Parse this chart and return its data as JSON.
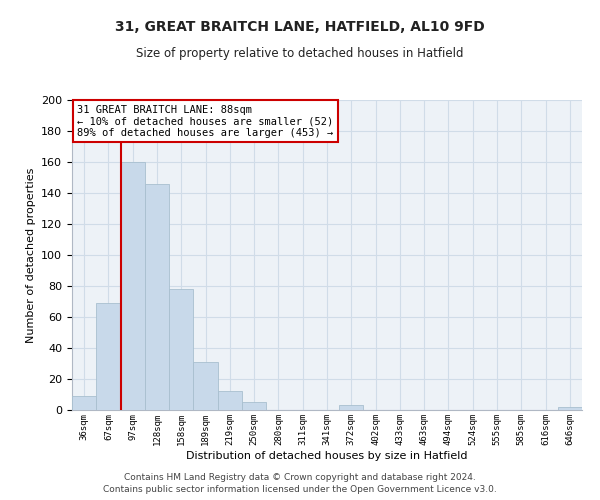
{
  "title": "31, GREAT BRAITCH LANE, HATFIELD, AL10 9FD",
  "subtitle": "Size of property relative to detached houses in Hatfield",
  "xlabel": "Distribution of detached houses by size in Hatfield",
  "ylabel": "Number of detached properties",
  "bar_color": "#c8d9ea",
  "bar_edge_color": "#a8bfcf",
  "background_color": "#ffffff",
  "axes_bg_color": "#edf2f7",
  "grid_color": "#d0dce8",
  "annotation_box_edge": "#cc0000",
  "vline_color": "#cc0000",
  "annotation_line1": "31 GREAT BRAITCH LANE: 88sqm",
  "annotation_line2": "← 10% of detached houses are smaller (52)",
  "annotation_line3": "89% of detached houses are larger (453) →",
  "tick_labels": [
    "36sqm",
    "67sqm",
    "97sqm",
    "128sqm",
    "158sqm",
    "189sqm",
    "219sqm",
    "250sqm",
    "280sqm",
    "311sqm",
    "341sqm",
    "372sqm",
    "402sqm",
    "433sqm",
    "463sqm",
    "494sqm",
    "524sqm",
    "555sqm",
    "585sqm",
    "616sqm",
    "646sqm"
  ],
  "bar_heights": [
    9,
    69,
    160,
    146,
    78,
    31,
    12,
    5,
    0,
    0,
    0,
    3,
    0,
    0,
    0,
    0,
    0,
    0,
    0,
    0,
    2
  ],
  "ylim": [
    0,
    200
  ],
  "yticks": [
    0,
    20,
    40,
    60,
    80,
    100,
    120,
    140,
    160,
    180,
    200
  ],
  "vline_x_index": 2,
  "footer_line1": "Contains HM Land Registry data © Crown copyright and database right 2024.",
  "footer_line2": "Contains public sector information licensed under the Open Government Licence v3.0."
}
